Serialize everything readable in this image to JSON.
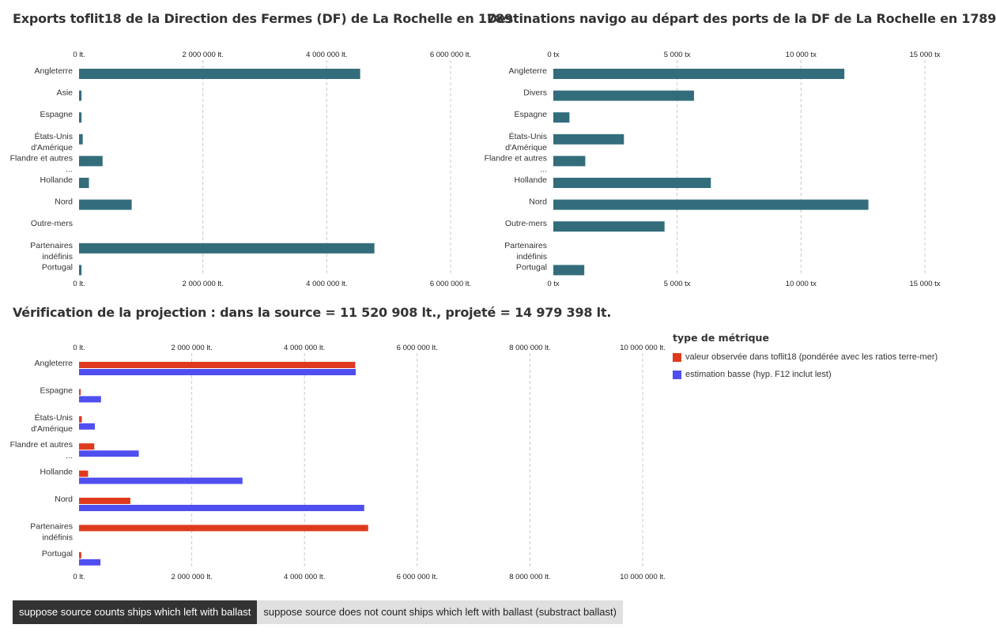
{
  "colors": {
    "bar": "#336d7c",
    "grid": "#c8c8c8",
    "observed": "#e03a1e",
    "estimate": "#4f4ff0"
  },
  "chart_data": [
    {
      "type": "bar",
      "title": "Exports toflit18 de la Direction des Fermes (DF) de La Rochelle en 1789",
      "categories": [
        [
          "Angleterre"
        ],
        [
          "Asie"
        ],
        [
          "Espagne"
        ],
        [
          "États-Unis",
          "d'Amérique"
        ],
        [
          "Flandre et autres",
          "..."
        ],
        [
          "Hollande"
        ],
        [
          "Nord"
        ],
        [
          "Outre-mers"
        ],
        [
          "Partenaires",
          "indéfinis"
        ],
        [
          "Portugal"
        ]
      ],
      "values": [
        4540000,
        40000,
        40000,
        60000,
        380000,
        160000,
        850000,
        0,
        4770000,
        40000
      ],
      "xlim": [
        0,
        6000000
      ],
      "ticks": [
        0,
        2000000,
        4000000,
        6000000
      ],
      "tick_labels": [
        "0 lt.",
        "2 000 000 lt.",
        "4 000 000 lt.",
        "6 000 000 lt."
      ]
    },
    {
      "type": "bar",
      "title": "Destinations navigo au départ des ports de la DF de La Rochelle en 1789",
      "categories": [
        [
          "Angleterre"
        ],
        [
          "Divers"
        ],
        [
          "Espagne"
        ],
        [
          "États-Unis",
          "d'Amérique"
        ],
        [
          "Flandre et autres",
          "..."
        ],
        [
          "Hollande"
        ],
        [
          "Nord"
        ],
        [
          "Outre-mers"
        ],
        [
          "Partenaires",
          "indéfinis"
        ],
        [
          "Portugal"
        ]
      ],
      "values": [
        11750,
        5680,
        650,
        2850,
        1290,
        6360,
        12720,
        4490,
        0,
        1250
      ],
      "xlim": [
        0,
        15000
      ],
      "ticks": [
        0,
        5000,
        10000,
        15000
      ],
      "tick_labels": [
        "0 tx",
        "5 000 tx",
        "10 000 tx",
        "15 000 tx"
      ]
    },
    {
      "type": "bar",
      "title": "Vérification de la projection : dans la source = 11 520 908 lt., projeté = 14 979 398 lt.",
      "categories": [
        [
          "Angleterre"
        ],
        [
          "Espagne"
        ],
        [
          "États-Unis",
          "d'Amérique"
        ],
        [
          "Flandre et autres",
          "..."
        ],
        [
          "Hollande"
        ],
        [
          "Nord"
        ],
        [
          "Partenaires",
          "indéfinis"
        ],
        [
          "Portugal"
        ]
      ],
      "series": [
        {
          "name": "valeur observée dans toflit18 (pondérée avec les ratios terre-mer)",
          "values": [
            4900000,
            30000,
            50000,
            270000,
            160000,
            910000,
            5130000,
            40000
          ]
        },
        {
          "name": "estimation basse (hyp. F12 inclut lest)",
          "values": [
            4910000,
            390000,
            280000,
            1060000,
            2900000,
            5060000,
            0,
            380000
          ]
        }
      ],
      "xlim": [
        0,
        10000000
      ],
      "ticks": [
        0,
        2000000,
        4000000,
        6000000,
        8000000,
        10000000
      ],
      "tick_labels": [
        "0 lt.",
        "2 000 000 lt.",
        "4 000 000 lt.",
        "6 000 000 lt.",
        "8 000 000 lt.",
        "10 000 000 lt."
      ],
      "legend_title": "type de métrique",
      "legend_position": "right"
    }
  ],
  "buttons": {
    "with_ballast": "suppose source counts ships which left with ballast",
    "without_ballast": "suppose source does not count ships which left with ballast (substract ballast)"
  }
}
